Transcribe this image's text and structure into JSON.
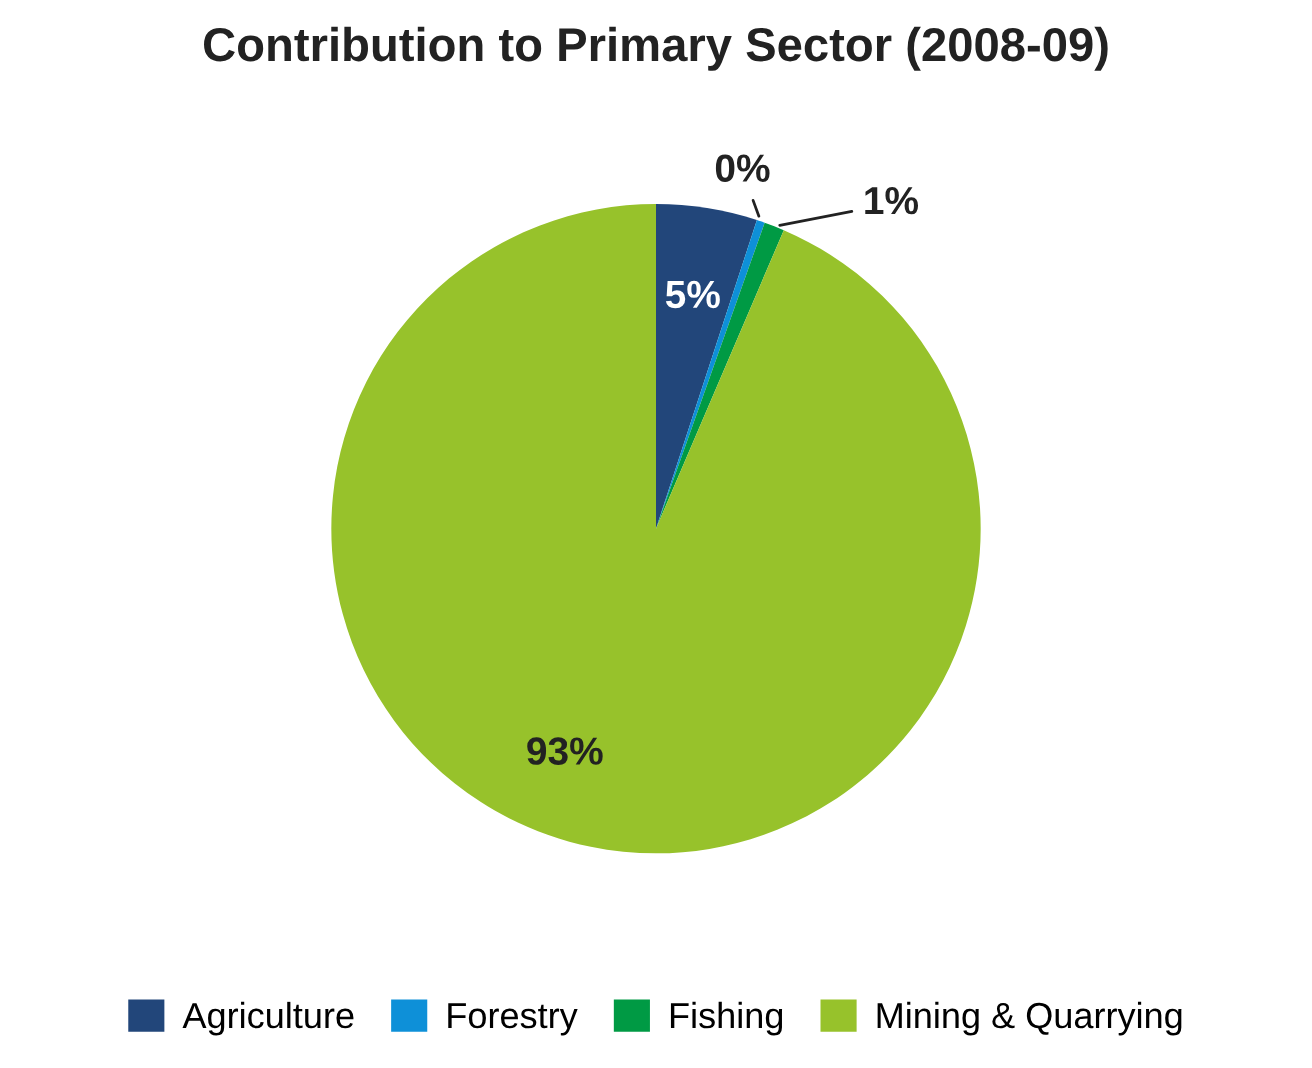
{
  "chart_data": {
    "type": "pie",
    "title": "Contribution to Primary Sector (2008-09)",
    "categories": [
      "Agriculture",
      "Forestry",
      "Fishing",
      "Mining & Quarrying"
    ],
    "values": [
      5,
      0.4,
      1,
      93
    ],
    "value_labels": [
      "5%",
      "0%",
      "1%",
      "93%"
    ],
    "colors": [
      "#22467a",
      "#0e90d8",
      "#009a44",
      "#97c22b"
    ],
    "legend": "bottom"
  }
}
